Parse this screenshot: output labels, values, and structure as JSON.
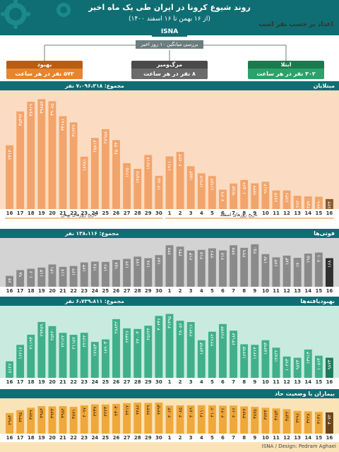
{
  "header": {
    "title": "روند شیوع کرونا در ایران طی یک ماه اخیر",
    "subtitle": "(از ۱۶ بهمن تا ۱۶ اسفند ۱۴۰۰)",
    "isna": "ISNA",
    "hourly_label": "اعداد بر حسب نفر است"
  },
  "average_label": "بررسی میانگین ۱۰ روز اخیر",
  "cards": [
    {
      "label": "بهبود",
      "value": "۵۷۲ نفر در هر ساعت",
      "color": "#e8842c",
      "dark": "#b85d12"
    },
    {
      "label": "مرگ‌ومیر",
      "value": "۸ نفر در هر ساعت",
      "color": "#6b6b6b",
      "dark": "#4a4a4a"
    },
    {
      "label": "ابتلا",
      "value": "۳۰۲ نفر در هر ساعت",
      "color": "#2aa36a",
      "dark": "#1b7a4c"
    }
  ],
  "colors": {
    "orange": "#f3a46a",
    "orange_bg": "#fbdcc3",
    "gray": "#8a8a8a",
    "gray_bg": "#d3d3d3",
    "green": "#3fb08a",
    "green_bg": "#c9ebdf",
    "amber": "#f0a83a",
    "amber_bg": "#fbe3b8",
    "brown": "#8b5a2b",
    "title_bg": "#0f6e73"
  },
  "axis": {
    "days": [
      "16",
      "17",
      "18",
      "19",
      "20",
      "21",
      "22",
      "23",
      "24",
      "25",
      "26",
      "27",
      "28",
      "29",
      "30",
      "1",
      "2",
      "3",
      "4",
      "5",
      "6",
      "7",
      "8",
      "9",
      "10",
      "11",
      "12",
      "13",
      "14",
      "15",
      "16"
    ],
    "bahman_label": "تاریخ روزهای بهمن",
    "esfand_label": "تاریخ روزهای اسفند"
  },
  "chart_data": [
    {
      "type": "bar",
      "title": "مبتلایان",
      "total": "مجموع: ۷،۰۹۶،۳۱۸ نفر",
      "categories": [
        "16",
        "17",
        "18",
        "19",
        "20",
        "21",
        "22",
        "23",
        "24",
        "25",
        "26",
        "27",
        "28",
        "29",
        "30",
        "1",
        "2",
        "3",
        "4",
        "5",
        "6",
        "7",
        "8",
        "9",
        "10",
        "11",
        "12",
        "13",
        "14",
        "15",
        "16"
      ],
      "values": [
        23130,
        35392,
        38919,
        39857,
        39085,
        33681,
        31447,
        18981,
        25813,
        28958,
        25034,
        16650,
        14597,
        19617,
        12058,
        19110,
        20723,
        15540,
        12962,
        11972,
        7029,
        9254,
        10562,
        9333,
        9913,
        6763,
        6736,
        4820,
        4590,
        4490,
        3624
      ],
      "labels": [
        "۲۳۱۳۰",
        "۳۵۳۹۲",
        "۳۸۹۱۹",
        "۳۹۸۵۷",
        "۳۹۰۸۵",
        "۳۳۶۸۱",
        "۳۱۴۴۷",
        "۱۸۹۸۱",
        "۲۵۸۱۳",
        "۲۸۹۵۸",
        "۲۵۰۳۴",
        "۱۶۶۵۰",
        "۱۴۵۹۷",
        "۱۹۶۱۷",
        "۱۲۰۵۸",
        "۱۹۱۱۰",
        "۲۰۷۲۳",
        "۱۵۵۴۰",
        "۱۲۹۶۲",
        "۱۱۹۷۲",
        "۷۰۲۹",
        "۹۲۵۴",
        "۱۰۵۶۲",
        "۹۳۳۳",
        "۹۹۱۳",
        "۶۷۶۳",
        "۶۷۳۶",
        "۴۸۲۰",
        "۴۵۹۰",
        "۴۴۹۰",
        "۳۶۲۴"
      ],
      "ylim": [
        0,
        42000
      ]
    },
    {
      "type": "bar",
      "title": "فوتی‌ها",
      "total": "مجموع: ۱۳۸،۱۱۶ نفر",
      "categories": [
        "16",
        "17",
        "18",
        "19",
        "20",
        "21",
        "22",
        "23",
        "24",
        "25",
        "26",
        "27",
        "28",
        "29",
        "30",
        "1",
        "2",
        "3",
        "4",
        "5",
        "6",
        "7",
        "8",
        "9",
        "10",
        "11",
        "12",
        "13",
        "14",
        "15",
        "16"
      ],
      "values": [
        64,
        98,
        106,
        113,
        131,
        117,
        122,
        143,
        148,
        146,
        158,
        164,
        177,
        168,
        186,
        244,
        236,
        213,
        217,
        226,
        214,
        244,
        229,
        250,
        192,
        173,
        183,
        170,
        195,
        201,
        168
      ],
      "labels": [
        "۶۴",
        "۹۸",
        "۱۰۶",
        "۱۱۳",
        "۱۳۱",
        "۱۱۷",
        "۱۲۲",
        "۱۴۳",
        "۱۴۸",
        "۱۴۶",
        "۱۵۸",
        "۱۶۴",
        "۱۷۷",
        "۱۶۸",
        "۱۸۶",
        "۲۴۴",
        "۲۳۶",
        "۲۱۳",
        "۲۱۷",
        "۲۲۶",
        "۲۱۴",
        "۲۴۴",
        "۲۲۹",
        "۲۵۰",
        "۱۹۲",
        "۱۷۳",
        "۱۸۳",
        "۱۷۰",
        "۱۹۵",
        "۲۰۱",
        "۱۶۸"
      ],
      "ylim": [
        0,
        270
      ]
    },
    {
      "type": "bar",
      "title": "بهبودیافته‌ها",
      "total": "مجموع: ۶،۷۳۹،۸۱۱ نفر",
      "categories": [
        "16",
        "17",
        "18",
        "19",
        "20",
        "21",
        "22",
        "23",
        "24",
        "25",
        "26",
        "27",
        "28",
        "29",
        "30",
        "1",
        "2",
        "3",
        "4",
        "5",
        "6",
        "7",
        "8",
        "9",
        "10",
        "11",
        "12",
        "13",
        "14",
        "15",
        "16"
      ],
      "values": [
        8126,
        16216,
        21193,
        27459,
        25420,
        22122,
        21157,
        22142,
        17653,
        18903,
        28842,
        24326,
        24003,
        25624,
        30436,
        31395,
        28056,
        27416,
        18493,
        22664,
        26433,
        23184,
        16493,
        16213,
        18493,
        14822,
        10473,
        9873,
        13913,
        10863,
        9873
      ],
      "labels": [
        "۸۱۲۶",
        "۱۶۲۱۶",
        "۲۱۱۹۳",
        "۲۷۴۵۹",
        "۲۵۴۲۰",
        "۲۲۱۲۲",
        "۲۱۱۵۷",
        "۲۲۱۴۲",
        "۱۷۶۵۳",
        "۱۸۹۰۳",
        "۲۸۸۴۲",
        "۲۴۳۲۶",
        "۲۴۰۰۳",
        "۲۵۶۲۴",
        "۳۰۴۳۶",
        "۳۱۳۹۵",
        "۲۸۰۵۶",
        "۲۷۴۱۶",
        "۱۸۴۹۳",
        "۲۲۶۶۴",
        "۲۶۴۳۳",
        "۲۳۱۸۴",
        "۱۶۴۹۳",
        "۱۶۲۱۳",
        "۱۸۴۹۳",
        "۱۴۸۲۲",
        "۱۰۴۷۳",
        "۹۸۷۳",
        "۱۳۹۱۳",
        "۱۰۸۶۳",
        "۹۸۷۳"
      ],
      "ylim": [
        0,
        34000
      ]
    },
    {
      "type": "bar",
      "title": "بیماران با وضعیت حاد",
      "total": "",
      "categories": [
        "16",
        "17",
        "18",
        "19",
        "20",
        "21",
        "22",
        "23",
        "24",
        "25",
        "26",
        "27",
        "28",
        "29",
        "30",
        "1",
        "2",
        "3",
        "4",
        "5",
        "6",
        "7",
        "8",
        "9",
        "10",
        "11",
        "12",
        "13",
        "14",
        "15",
        "16"
      ],
      "values": [
        2983,
        3395,
        3749,
        3983,
        3943,
        3984,
        3871,
        4097,
        4237,
        4223,
        4303,
        4417,
        4486,
        4449,
        4493,
        4063,
        4085,
        4089,
        4110,
        4102,
        4046,
        4066,
        3947,
        3875,
        3743,
        3653,
        3542,
        3296,
        3228,
        3136,
        3072
      ],
      "labels": [
        "۲۹۸۳",
        "۳۳۹۵",
        "۳۷۴۹",
        "۳۹۸۳",
        "۳۹۴۳",
        "۳۹۸۴",
        "۳۸۷۱",
        "۴۰۹۷",
        "۴۲۳۷",
        "۴۲۲۳",
        "۴۳۰۳",
        "۴۴۱۷",
        "۴۴۸۶",
        "۴۴۴۹",
        "۴۴۹۳",
        "۴۰۶۳",
        "۴۰۸۵",
        "۴۰۸۹",
        "۴۱۱۰",
        "۴۱۰۲",
        "۴۰۴۶",
        "۴۰۶۶",
        "۳۹۴۷",
        "۳۸۷۵",
        "۳۷۴۳",
        "۳۶۵۳",
        "۳۵۴۲",
        "۳۲۹۶",
        "۳۲۲۸",
        "۳۱۳۶",
        "۳۰۷۲"
      ],
      "ylim": [
        0,
        4700
      ]
    }
  ],
  "credit": "ISNA / Design: Pedram Aghaei"
}
